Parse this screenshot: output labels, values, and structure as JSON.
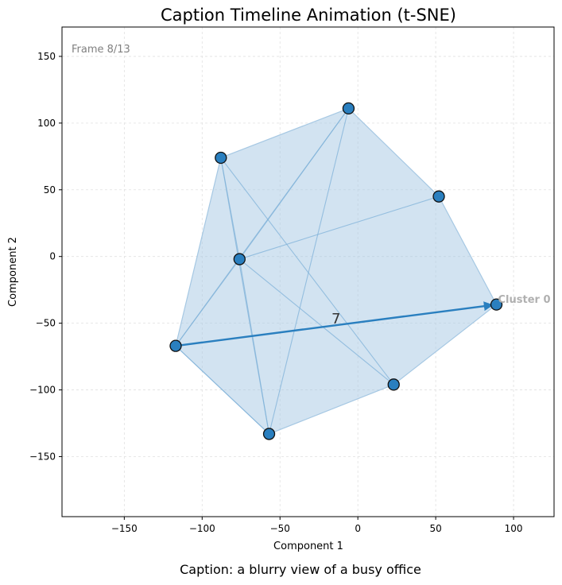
{
  "chart_data": {
    "type": "scatter",
    "title": "Caption Timeline Animation (t-SNE)",
    "xlabel": "Component 1",
    "ylabel": "Component 2",
    "xlim": [
      -190,
      126
    ],
    "ylim": [
      -195,
      172
    ],
    "xticks": [
      -150,
      -100,
      -50,
      0,
      50,
      100
    ],
    "yticks": [
      -150,
      -100,
      -50,
      0,
      50,
      100,
      150
    ],
    "xtick_labels": [
      "−150",
      "−100",
      "−50",
      "0",
      "50",
      "100"
    ],
    "ytick_labels": [
      "−150",
      "−100",
      "−50",
      "0",
      "50",
      "100",
      "150"
    ],
    "grid": true,
    "frame_label": "Frame 8/13",
    "points": [
      {
        "x": -88,
        "y": 74
      },
      {
        "x": -6,
        "y": 111
      },
      {
        "x": 52,
        "y": 45
      },
      {
        "x": -76,
        "y": -2
      },
      {
        "x": 89,
        "y": -36
      },
      {
        "x": -117,
        "y": -67
      },
      {
        "x": 23,
        "y": -96
      },
      {
        "x": -57,
        "y": -133
      }
    ],
    "hull": [
      1,
      2,
      4,
      6,
      7,
      5,
      0
    ],
    "edges": [
      [
        0,
        3
      ],
      [
        0,
        7
      ],
      [
        0,
        6
      ],
      [
        1,
        3
      ],
      [
        1,
        7
      ],
      [
        1,
        5
      ],
      [
        3,
        2
      ],
      [
        3,
        6
      ],
      [
        3,
        7
      ],
      [
        3,
        5
      ],
      [
        5,
        7
      ]
    ],
    "arrow": {
      "from": 5,
      "to": 4
    },
    "arrow_label": "7",
    "cluster_label": "Cluster 0",
    "point_color": "#2a7fbf",
    "hull_color": "#a6c8e3",
    "caption": "Caption: a blurry view of a busy office"
  }
}
